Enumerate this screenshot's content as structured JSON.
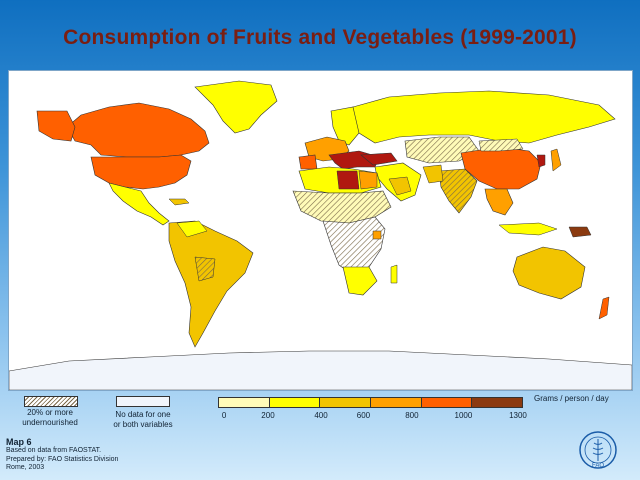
{
  "title": "Consumption of  Fruits and Vegetables  (1999-2001)",
  "legend": {
    "units": "Grams / person / day",
    "ticks": [
      "0",
      "200",
      "400",
      "600",
      "800",
      "1000",
      "1300"
    ],
    "classes": [
      {
        "range": "0-200",
        "color": "#fffbb8"
      },
      {
        "range": "200-400",
        "color": "#ffff00"
      },
      {
        "range": "400-600",
        "color": "#f2c400"
      },
      {
        "range": "600-800",
        "color": "#ffa000"
      },
      {
        "range": "800-1000",
        "color": "#ff6000"
      },
      {
        "range": "1000-1300",
        "color": "#b01810"
      }
    ],
    "last_class": {
      "range": "1000-1300",
      "color": "#8b3a10"
    },
    "undernourished_label_line1": "20% or more",
    "undernourished_label_line2": "undernourished",
    "no_data_label_line1": "No data for one",
    "no_data_label_line2": "or both variables"
  },
  "notes": {
    "map_number": "Map 6",
    "line1": "Based on data from FAOSTAT.",
    "line2": "Prepared by: FAO Statistics Division",
    "line3": "Rome, 2003"
  },
  "logo": {
    "text": "FAO"
  },
  "colors": {
    "c0": "#fffbb8",
    "c1": "#ffff00",
    "c2": "#f2c400",
    "c3": "#ffa000",
    "c4": "#ff6000",
    "c5": "#b01810",
    "c6": "#8b3a10",
    "nodata": "#f1f5fb",
    "hatch": "#7b6a4a"
  }
}
